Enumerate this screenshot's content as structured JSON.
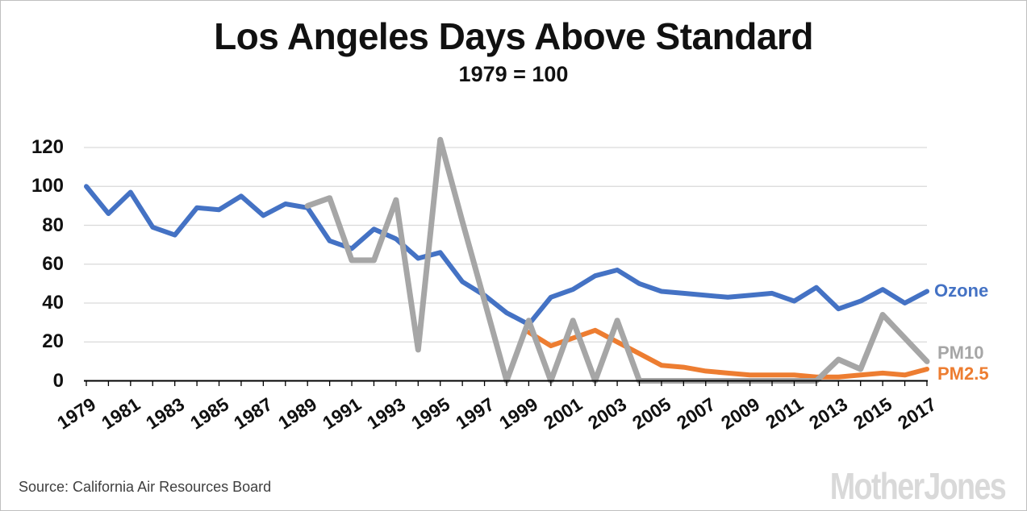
{
  "header": {
    "title": "Los Angeles Days Above Standard",
    "subtitle": "1979 = 100"
  },
  "footer": {
    "source": "Source:  California Air Resources Board",
    "brand": "Mother Jones"
  },
  "colors": {
    "ozone": "#4472C4",
    "pm10": "#A6A6A6",
    "pm25": "#ED7D31",
    "gridline": "#D9D9D9",
    "axis": "#000000"
  },
  "chart_data": {
    "type": "line",
    "title": "Los Angeles Days Above Standard",
    "subtitle": "1979 = 100",
    "xlabel": "",
    "ylabel": "",
    "x_years": {
      "start": 1979,
      "end": 2017,
      "step": 1
    },
    "ylim": [
      0,
      120
    ],
    "yticks": [
      0,
      20,
      40,
      60,
      80,
      100,
      120
    ],
    "xtick_labels": [
      "1979",
      "1981",
      "1983",
      "1985",
      "1987",
      "1989",
      "1991",
      "1993",
      "1995",
      "1997",
      "1999",
      "2001",
      "2003",
      "2005",
      "2007",
      "2009",
      "2011",
      "2013",
      "2015",
      "2017"
    ],
    "grid": true,
    "legend_position": "right-end-labels",
    "series": [
      {
        "name": "Ozone",
        "color": "#4472C4",
        "start_year": 1979,
        "values": [
          100,
          86,
          97,
          79,
          75,
          89,
          88,
          95,
          85,
          91,
          89,
          72,
          68,
          78,
          73,
          63,
          66,
          51,
          44,
          35,
          29,
          43,
          47,
          54,
          57,
          50,
          46,
          45,
          44,
          43,
          44,
          45,
          41,
          48,
          37,
          41,
          47,
          40,
          46
        ]
      },
      {
        "name": "PM10",
        "color": "#A6A6A6",
        "start_year": 1989,
        "values": [
          90,
          94,
          62,
          62,
          93,
          16,
          124,
          82,
          41,
          0,
          31,
          0,
          31,
          0,
          31,
          0,
          0,
          0,
          0,
          0,
          0,
          0,
          0,
          0,
          11,
          6,
          34,
          22,
          10
        ]
      },
      {
        "name": "PM2.5",
        "color": "#ED7D31",
        "start_year": 1999,
        "values": [
          25,
          18,
          22,
          26,
          20,
          14,
          8,
          7,
          5,
          4,
          3,
          3,
          3,
          2,
          2,
          3,
          4,
          3,
          6
        ]
      }
    ]
  }
}
